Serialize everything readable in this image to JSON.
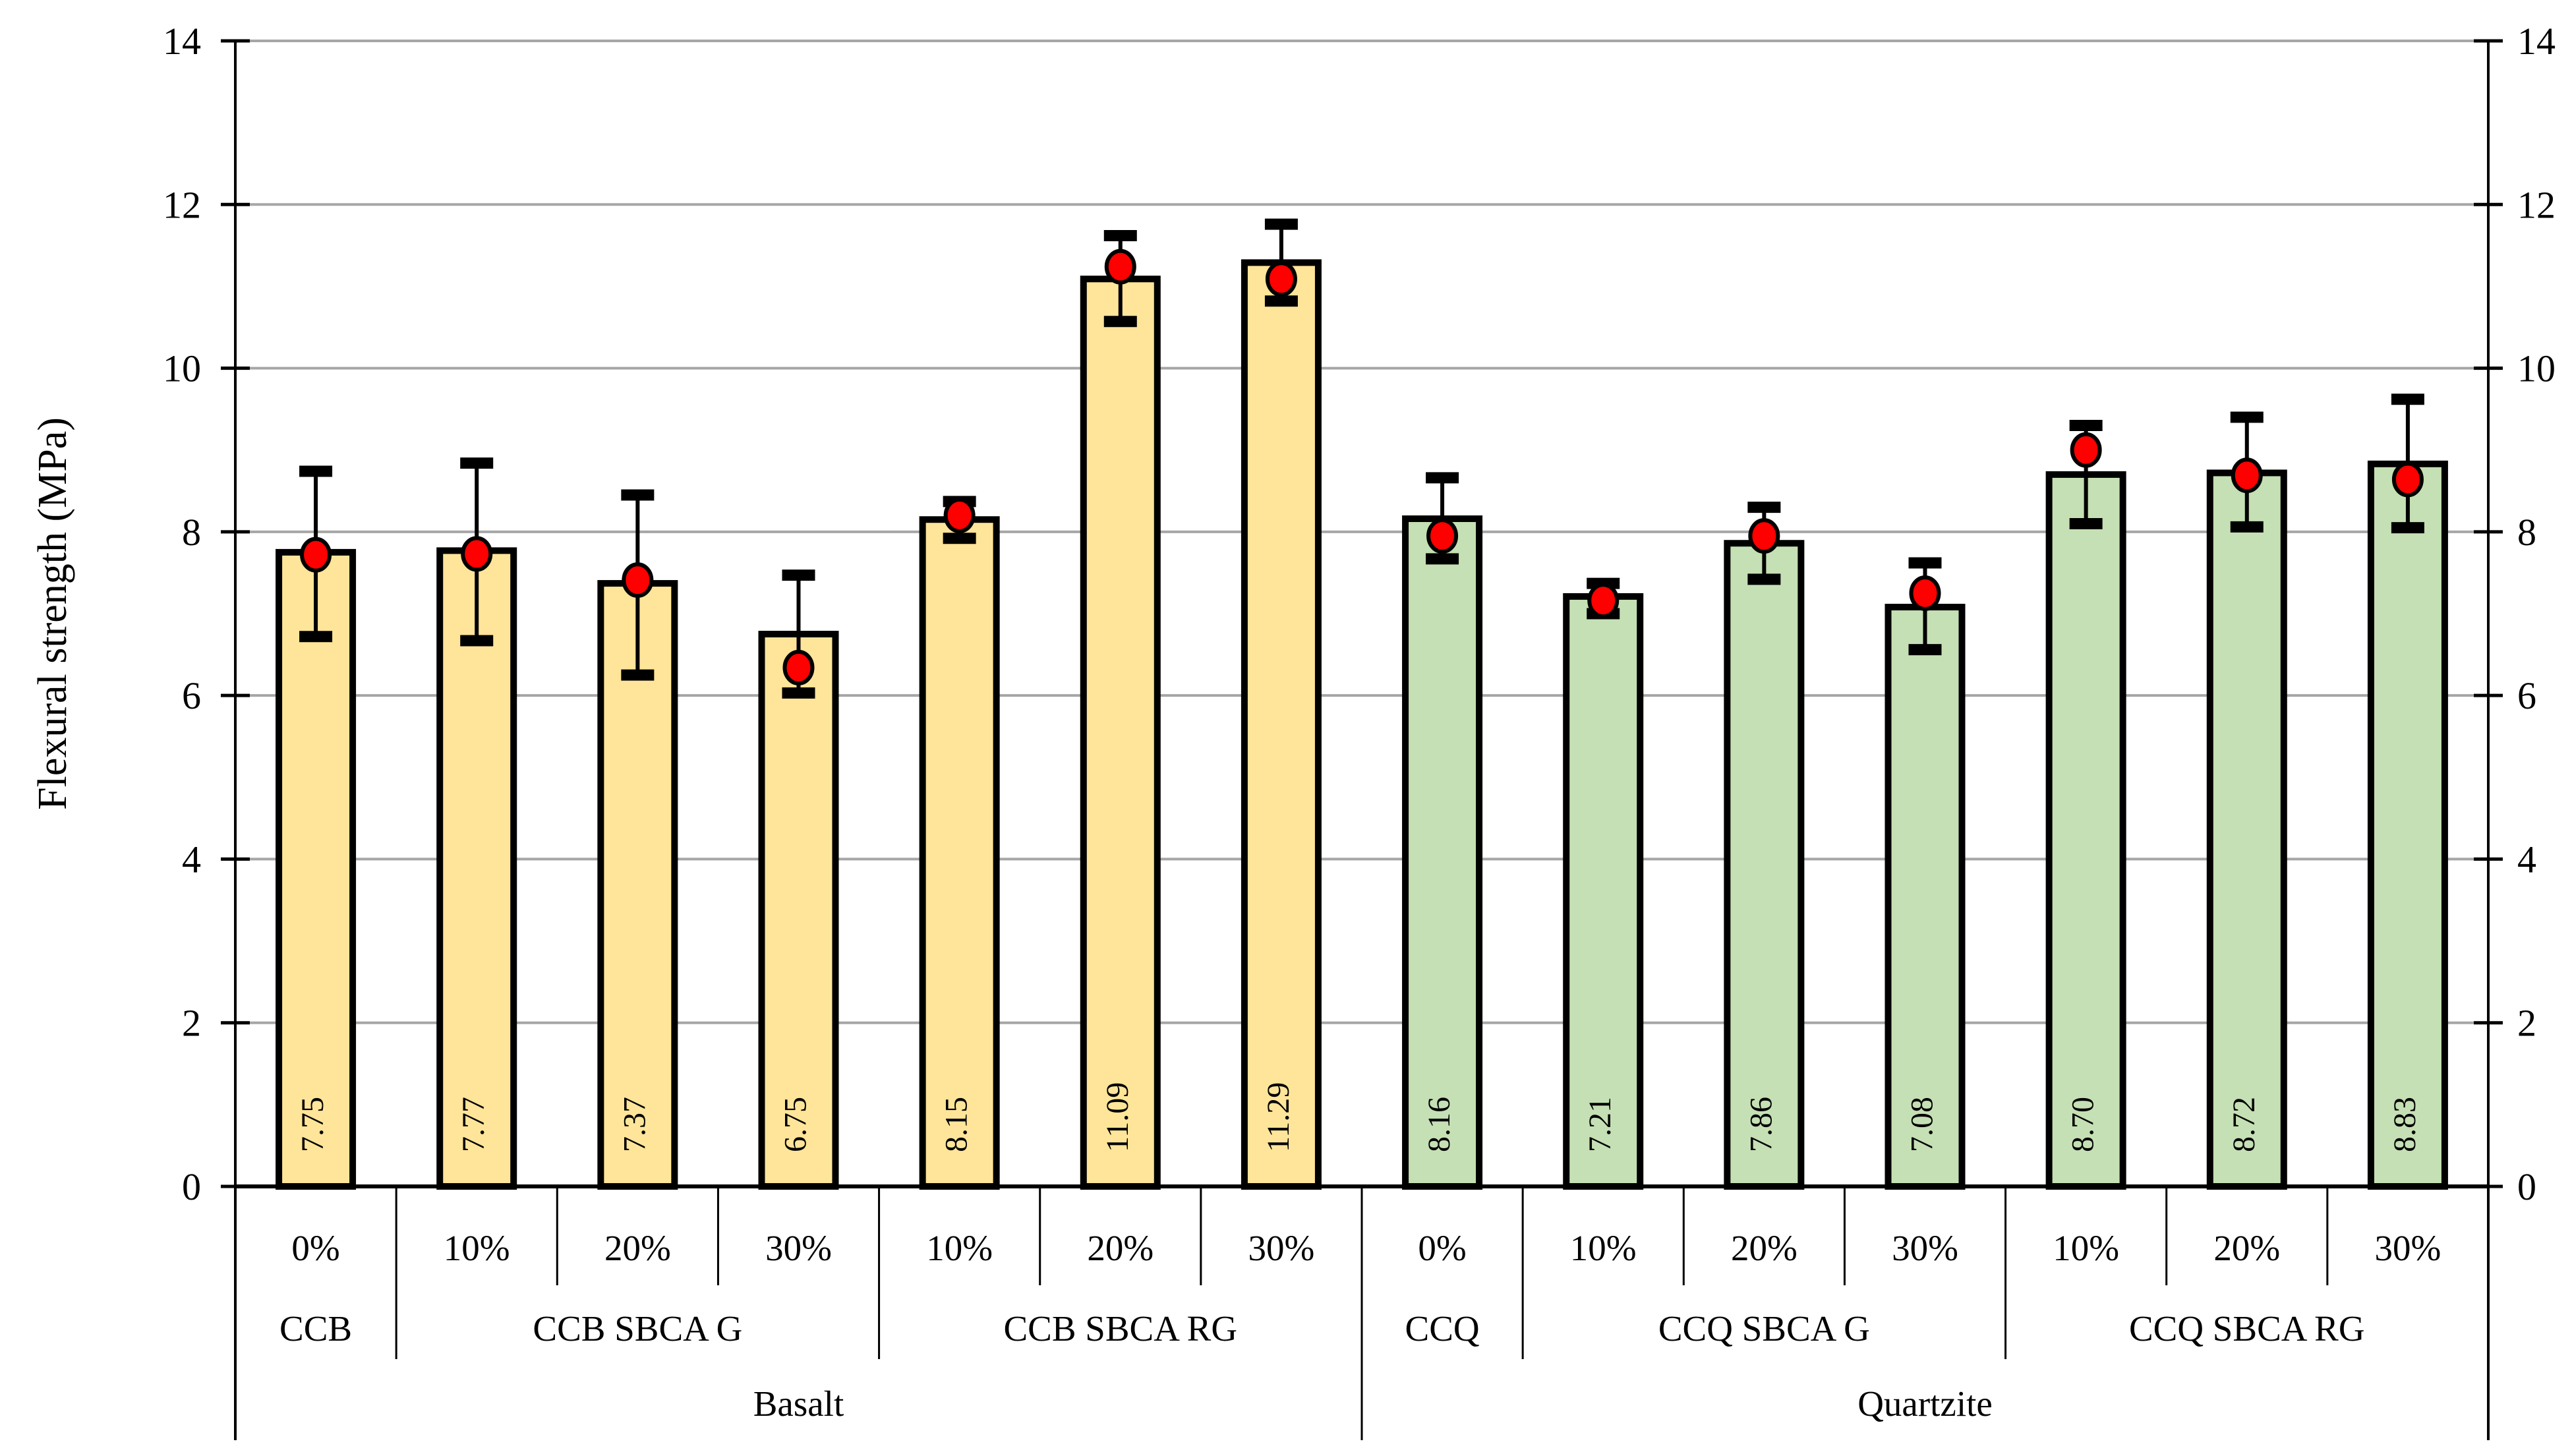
{
  "chart_data": {
    "type": "bar",
    "title": "",
    "ylabel": "Flexural strength (MPa)",
    "xlabel": "",
    "ylim": [
      0,
      14
    ],
    "yticks": [
      0,
      2,
      4,
      6,
      8,
      10,
      12,
      14
    ],
    "grid": "horizontal",
    "gridline_color": "#A6A6A6",
    "axis_color": "#000000",
    "legend_position": "none",
    "axis_sides": [
      "left",
      "right"
    ],
    "marker": {
      "shape": "ellipse",
      "fill": "#FF0000",
      "stroke": "#000000"
    },
    "error_bar_color": "#000000",
    "materials": [
      {
        "name": "Basalt",
        "bar_color": "#FFE599",
        "groups": [
          {
            "name": "CCB",
            "bars": [
              {
                "pct": "0%",
                "label": "7.75",
                "value": 7.75,
                "marker": 7.72,
                "err_lo": 6.72,
                "err_hi": 8.74
              }
            ]
          },
          {
            "name": "CCB SBCA G",
            "bars": [
              {
                "pct": "10%",
                "label": "7.77",
                "value": 7.77,
                "marker": 7.73,
                "err_lo": 6.67,
                "err_hi": 8.84
              },
              {
                "pct": "20%",
                "label": "7.37",
                "value": 7.37,
                "marker": 7.41,
                "err_lo": 6.25,
                "err_hi": 8.45
              },
              {
                "pct": "30%",
                "label": "6.75",
                "value": 6.75,
                "marker": 6.34,
                "err_lo": 6.03,
                "err_hi": 7.47
              }
            ]
          },
          {
            "name": "CCB SBCA RG",
            "bars": [
              {
                "pct": "10%",
                "label": "8.15",
                "value": 8.15,
                "marker": 8.2,
                "err_lo": 7.92,
                "err_hi": 8.37
              },
              {
                "pct": "20%",
                "label": "11.09",
                "value": 11.09,
                "marker": 11.24,
                "err_lo": 10.57,
                "err_hi": 11.62
              },
              {
                "pct": "30%",
                "label": "11.29",
                "value": 11.29,
                "marker": 11.09,
                "err_lo": 10.82,
                "err_hi": 11.76
              }
            ]
          }
        ]
      },
      {
        "name": "Quartzite",
        "bar_color": "#C5E0B4",
        "groups": [
          {
            "name": "CCQ",
            "bars": [
              {
                "pct": "0%",
                "label": "8.16",
                "value": 8.16,
                "marker": 7.95,
                "err_lo": 7.67,
                "err_hi": 8.66
              }
            ]
          },
          {
            "name": "CCQ SBCA G",
            "bars": [
              {
                "pct": "10%",
                "label": "7.21",
                "value": 7.21,
                "marker": 7.16,
                "err_lo": 7.0,
                "err_hi": 7.37
              },
              {
                "pct": "20%",
                "label": "7.86",
                "value": 7.86,
                "marker": 7.95,
                "err_lo": 7.42,
                "err_hi": 8.3
              },
              {
                "pct": "30%",
                "label": "7.08",
                "value": 7.08,
                "marker": 7.25,
                "err_lo": 6.56,
                "err_hi": 7.62
              }
            ]
          },
          {
            "name": "CCQ SBCA RG",
            "bars": [
              {
                "pct": "10%",
                "label": "8.70",
                "value": 8.7,
                "marker": 9.0,
                "err_lo": 8.1,
                "err_hi": 9.3
              },
              {
                "pct": "20%",
                "label": "8.72",
                "value": 8.72,
                "marker": 8.69,
                "err_lo": 8.06,
                "err_hi": 9.4
              },
              {
                "pct": "30%",
                "label": "8.83",
                "value": 8.83,
                "marker": 8.64,
                "err_lo": 8.05,
                "err_hi": 9.62
              }
            ]
          }
        ]
      }
    ]
  }
}
